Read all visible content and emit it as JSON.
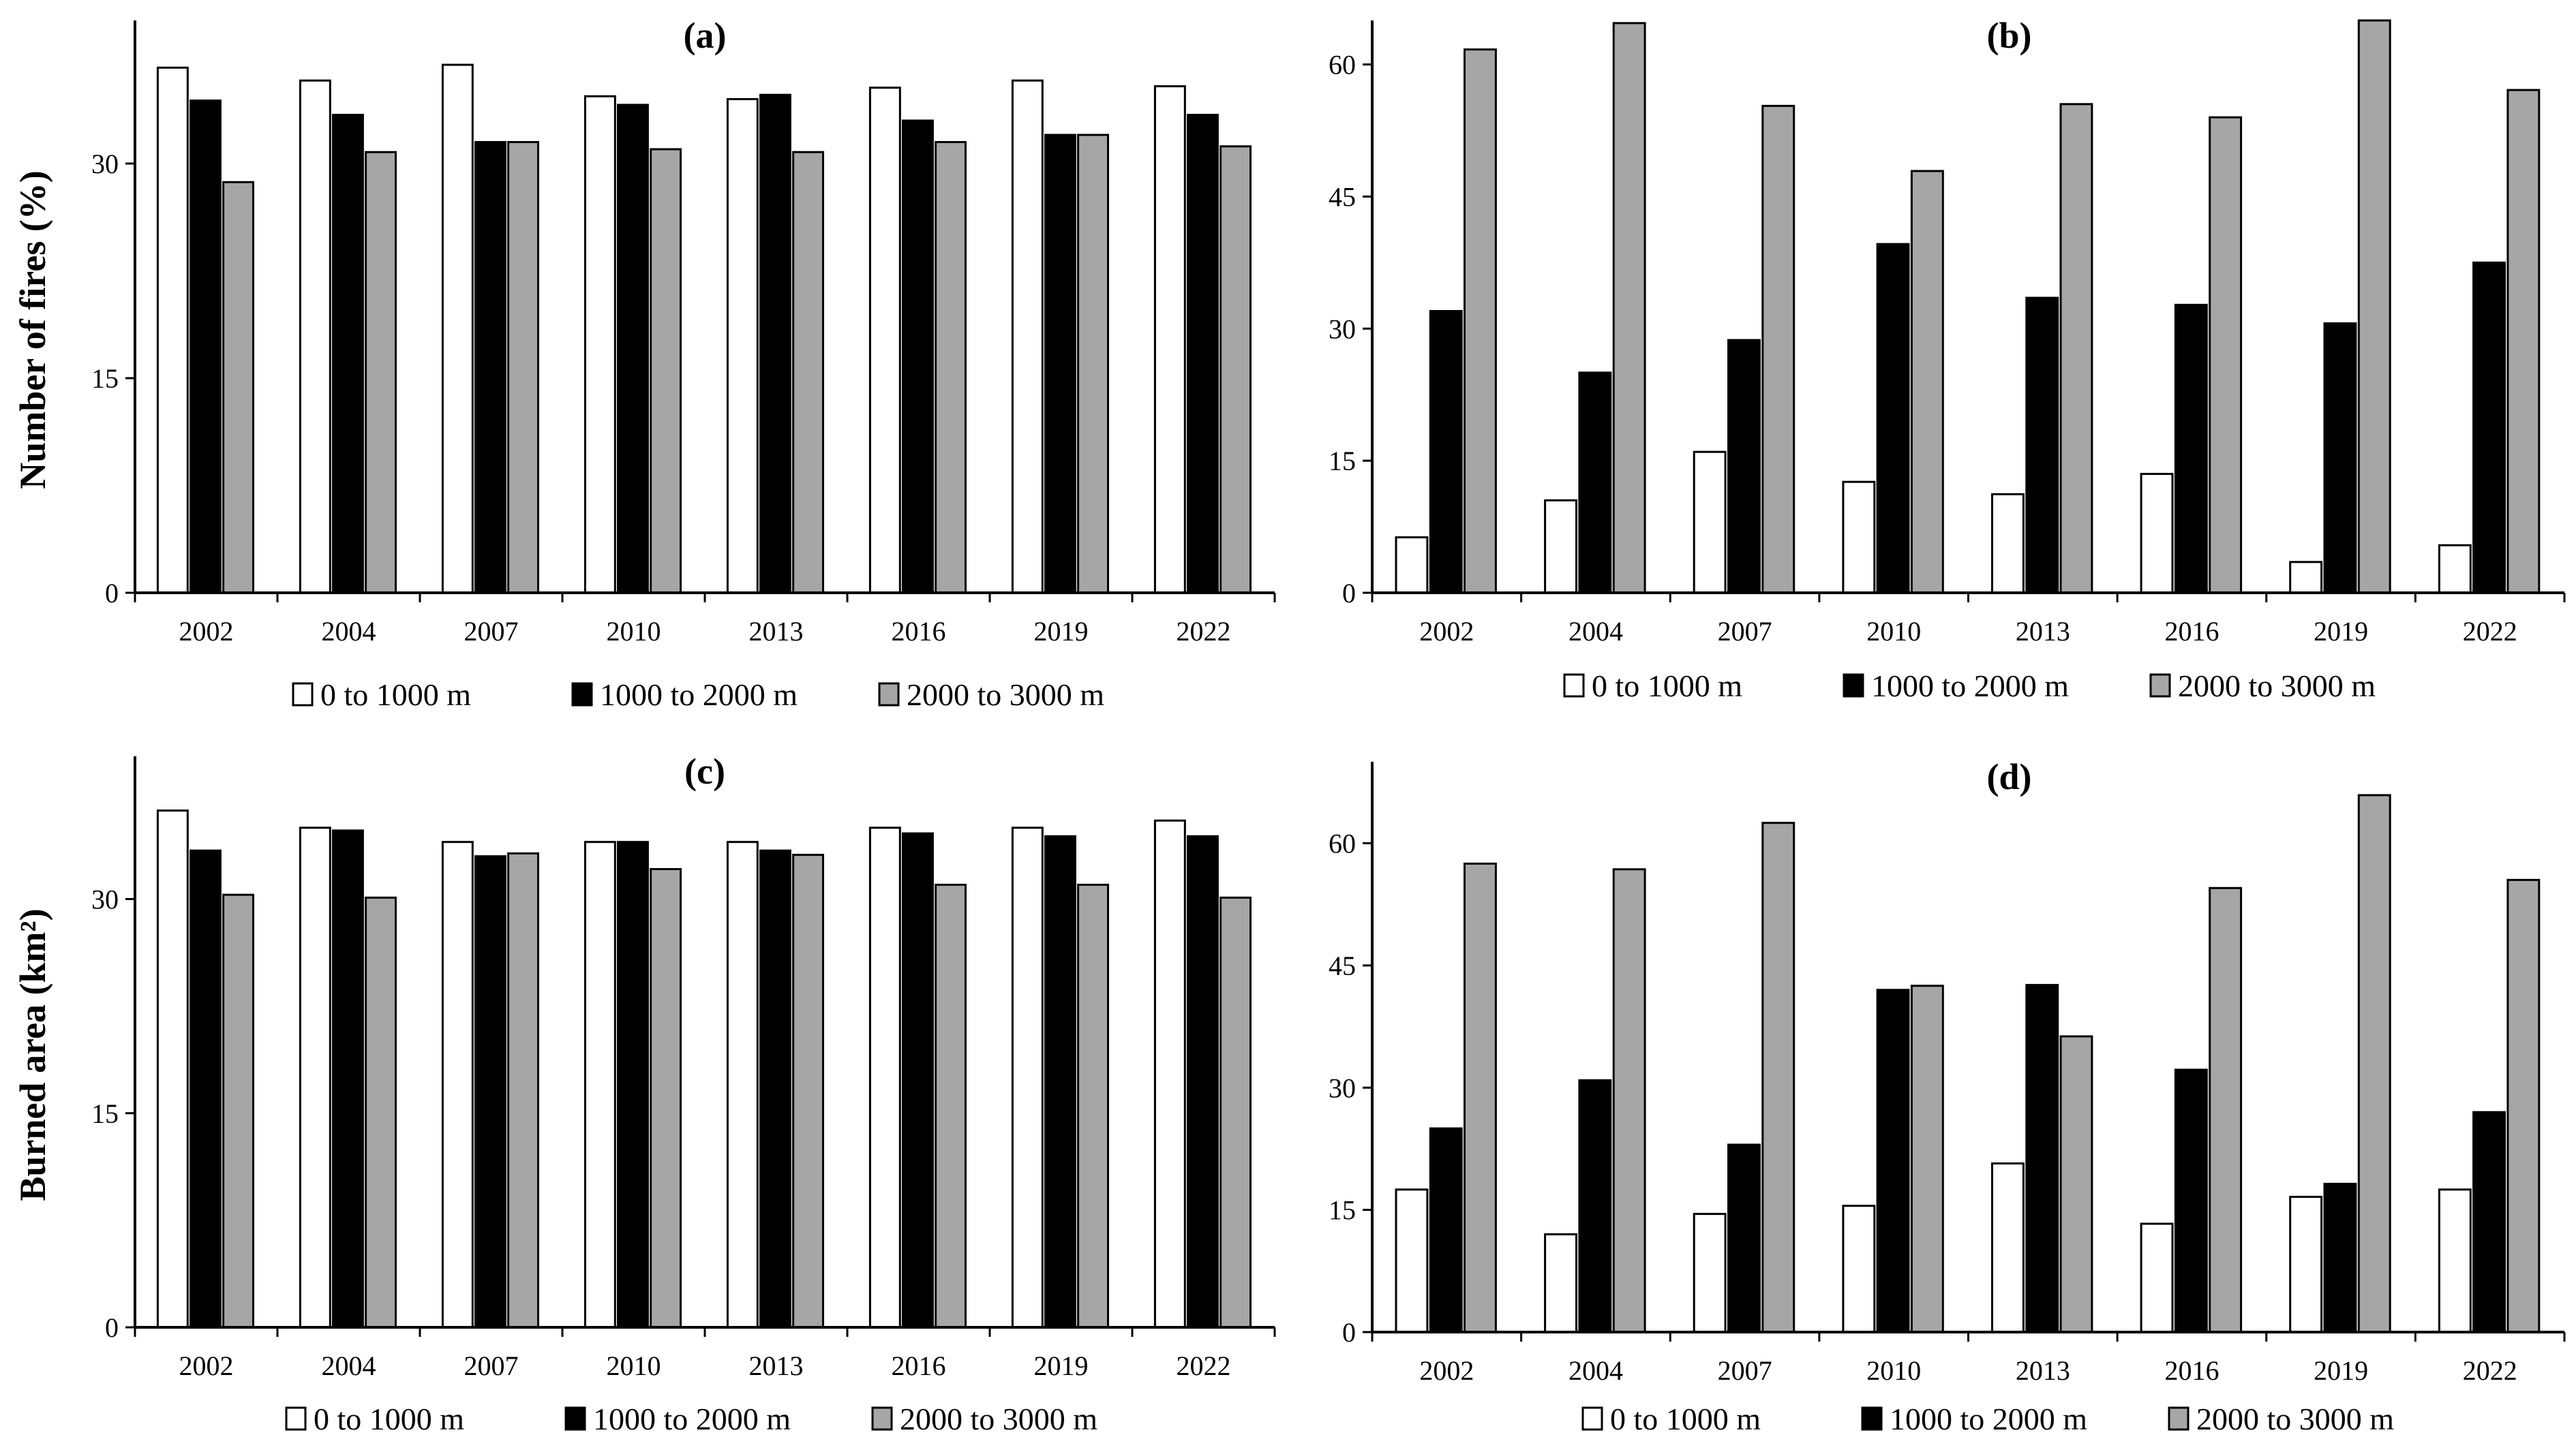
{
  "figure": {
    "ylabels": {
      "top": "Number of fires (%)",
      "bottom": "Burned area (km²)"
    }
  },
  "series_colors": {
    "0 to 1000 m": "#ffffff",
    "1000 to 2000 m": "#000000",
    "2000 to 3000 m": "#a6a6a6"
  },
  "chart_data": [
    {
      "panel": "a",
      "type": "bar",
      "title": "(a)",
      "ylabel": "Number of fires (%)",
      "xlabel": "",
      "categories": [
        "2002",
        "2004",
        "2007",
        "2010",
        "2013",
        "2016",
        "2019",
        "2022"
      ],
      "ylim": [
        0,
        40
      ],
      "yticks": [
        0,
        15,
        30
      ],
      "legend": "bottom",
      "series": [
        {
          "name": "0 to 1000 m",
          "values": [
            36.7,
            35.8,
            36.9,
            34.7,
            34.5,
            35.3,
            35.8,
            35.4
          ]
        },
        {
          "name": "1000 to 2000 m",
          "values": [
            34.4,
            33.4,
            31.5,
            34.1,
            34.8,
            33.0,
            32.0,
            33.4
          ]
        },
        {
          "name": "2000 to 3000 m",
          "values": [
            28.7,
            30.8,
            31.5,
            31.0,
            30.8,
            31.5,
            32.0,
            31.2
          ]
        }
      ]
    },
    {
      "panel": "b",
      "type": "bar",
      "title": "(b)",
      "ylabel": "",
      "xlabel": "",
      "categories": [
        "2002",
        "2004",
        "2007",
        "2010",
        "2013",
        "2016",
        "2019",
        "2022"
      ],
      "ylim": [
        0,
        65
      ],
      "yticks": [
        0,
        15,
        30,
        45,
        60
      ],
      "legend": "bottom",
      "series": [
        {
          "name": "0 to 1000 m",
          "values": [
            6.3,
            10.5,
            16.0,
            12.6,
            11.2,
            13.5,
            3.5,
            5.4
          ]
        },
        {
          "name": "1000 to 2000 m",
          "values": [
            32.0,
            25.0,
            28.7,
            39.6,
            33.5,
            32.7,
            30.6,
            37.5
          ]
        },
        {
          "name": "2000 to 3000 m",
          "values": [
            61.7,
            64.7,
            55.3,
            47.9,
            55.5,
            54.0,
            65.0,
            57.1
          ]
        }
      ]
    },
    {
      "panel": "c",
      "type": "bar",
      "title": "(c)",
      "ylabel": "Burned area (km²)",
      "xlabel": "",
      "categories": [
        "2002",
        "2004",
        "2007",
        "2010",
        "2013",
        "2016",
        "2019",
        "2022"
      ],
      "ylim": [
        0,
        40
      ],
      "yticks": [
        0,
        15,
        30
      ],
      "legend": "bottom",
      "series": [
        {
          "name": "0 to 1000 m",
          "values": [
            36.2,
            35.0,
            34.0,
            34.0,
            34.0,
            35.0,
            35.0,
            35.5
          ]
        },
        {
          "name": "1000 to 2000 m",
          "values": [
            33.4,
            34.8,
            33.0,
            34.0,
            33.4,
            34.6,
            34.4,
            34.4
          ]
        },
        {
          "name": "2000 to 3000 m",
          "values": [
            30.3,
            30.1,
            33.2,
            32.1,
            33.1,
            31.0,
            31.0,
            30.1
          ]
        }
      ]
    },
    {
      "panel": "d",
      "type": "bar",
      "title": "(d)",
      "ylabel": "",
      "xlabel": "",
      "categories": [
        "2002",
        "2004",
        "2007",
        "2010",
        "2013",
        "2016",
        "2019",
        "2022"
      ],
      "ylim": [
        0,
        70
      ],
      "yticks": [
        0,
        15,
        30,
        45,
        60
      ],
      "legend": "bottom",
      "series": [
        {
          "name": "0 to 1000 m",
          "values": [
            17.5,
            12.0,
            14.5,
            15.5,
            20.7,
            13.3,
            16.6,
            17.5
          ]
        },
        {
          "name": "1000 to 2000 m",
          "values": [
            25.0,
            30.9,
            23.0,
            42.0,
            42.6,
            32.2,
            18.2,
            27.0
          ]
        },
        {
          "name": "2000 to 3000 m",
          "values": [
            57.5,
            56.8,
            62.5,
            42.5,
            36.3,
            54.5,
            65.9,
            55.5
          ]
        }
      ]
    }
  ]
}
